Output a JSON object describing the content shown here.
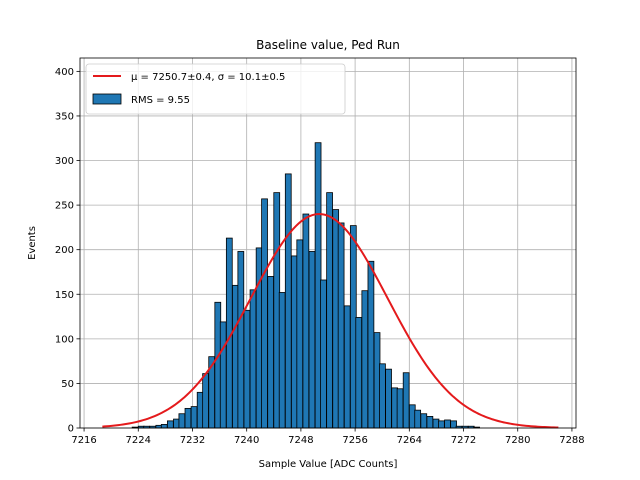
{
  "chart_data": {
    "type": "bar",
    "title": "Baseline value, Ped Run",
    "xlabel": "Sample Value [ADC Counts]",
    "ylabel": "Events",
    "xlim": [
      7215.4,
      7288.6
    ],
    "ylim": [
      0,
      415
    ],
    "xticks": [
      7216,
      7224,
      7232,
      7240,
      7248,
      7256,
      7264,
      7272,
      7280,
      7288
    ],
    "yticks": [
      0,
      50,
      100,
      150,
      200,
      250,
      300,
      350,
      400
    ],
    "grid": true,
    "legend_position": "top-left",
    "bin_width": 0.87,
    "histogram": {
      "name": "RMS = 9.55",
      "color": "#1f77b4",
      "edge_color": "#000000",
      "bin_left": [
        7218.7,
        7219.6,
        7220.5,
        7221.3,
        7222.2,
        7223.1,
        7224.0,
        7224.8,
        7225.7,
        7226.6,
        7227.4,
        7228.3,
        7229.2,
        7230.0,
        7230.9,
        7231.8,
        7232.7,
        7233.5,
        7234.4,
        7235.3,
        7236.1,
        7237.0,
        7237.9,
        7238.7,
        7239.6,
        7240.5,
        7241.4,
        7242.2,
        7243.1,
        7244.0,
        7244.8,
        7245.7,
        7246.6,
        7247.4,
        7248.3,
        7249.2,
        7250.1,
        7250.9,
        7251.8,
        7252.7,
        7253.5,
        7254.4,
        7255.3,
        7256.1,
        7257.0,
        7257.9,
        7258.8,
        7259.6,
        7260.5,
        7261.4,
        7262.2,
        7263.1,
        7264.0,
        7264.8,
        7265.7,
        7266.6,
        7267.5,
        7268.3,
        7269.2,
        7270.1,
        7270.9,
        7271.8,
        7272.7,
        7273.5,
        7274.4,
        7275.3,
        7276.2,
        7277.0,
        7277.9,
        7278.8,
        7279.6,
        7280.5,
        7281.4,
        7282.2,
        7283.1
      ],
      "counts": [
        0,
        0,
        0,
        0,
        0,
        1,
        2,
        2,
        2,
        3,
        4,
        8,
        10,
        16,
        22,
        24,
        40,
        61,
        80,
        141,
        119,
        213,
        160,
        198,
        132,
        155,
        202,
        257,
        170,
        264,
        152,
        285,
        193,
        211,
        240,
        198,
        320,
        166,
        264,
        245,
        230,
        137,
        227,
        124,
        154,
        187,
        107,
        72,
        66,
        45,
        44,
        62,
        26,
        20,
        16,
        13,
        10,
        8,
        9,
        8,
        2,
        2,
        2,
        1,
        0,
        0,
        0,
        0,
        0,
        0,
        0,
        0,
        0,
        0,
        0
      ]
    },
    "fit": {
      "name": "μ = 7250.7±0.4, σ = 10.1±0.5",
      "color": "#e41a1c",
      "mu": 7250.7,
      "sigma": 10.1,
      "amplitude": 240,
      "x_range": [
        7218.7,
        7286.0
      ]
    }
  }
}
